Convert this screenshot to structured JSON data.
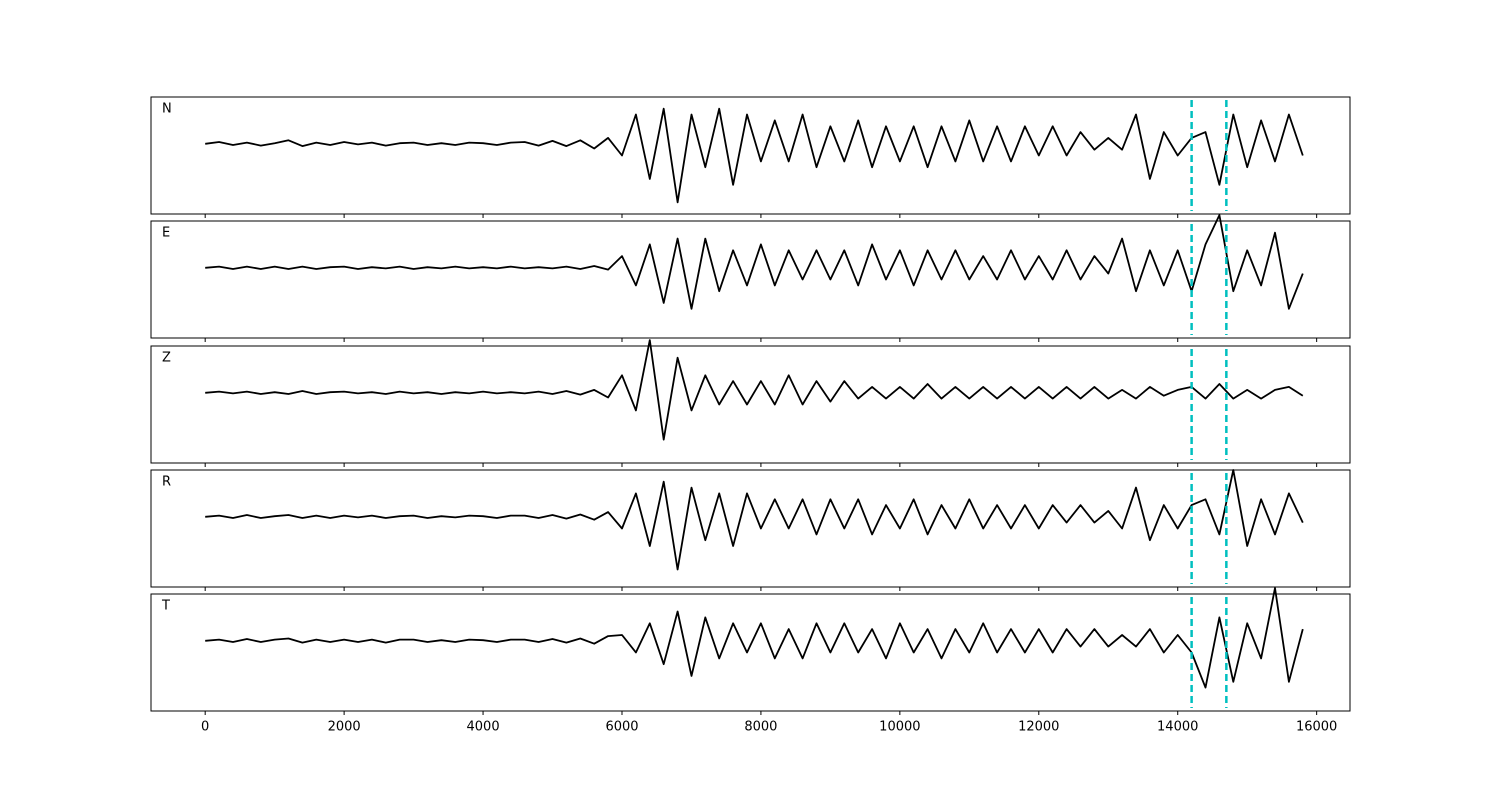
{
  "chart_data": {
    "type": "line",
    "x": [
      0,
      200,
      400,
      600,
      800,
      1000,
      1200,
      1400,
      1600,
      1800,
      2000,
      2200,
      2400,
      2600,
      2800,
      3000,
      3200,
      3400,
      3600,
      3800,
      4000,
      4200,
      4400,
      4600,
      4800,
      5000,
      5200,
      5400,
      5600,
      5800,
      6000,
      6200,
      6400,
      6600,
      6800,
      7000,
      7200,
      7400,
      7600,
      7800,
      8000,
      8200,
      8400,
      8600,
      8800,
      9000,
      9200,
      9400,
      9600,
      9800,
      10000,
      10200,
      10400,
      10600,
      10800,
      11000,
      11200,
      11400,
      11600,
      11800,
      12000,
      12200,
      12400,
      12600,
      12800,
      13000,
      13200,
      13400,
      13600,
      13800,
      14000,
      14200,
      14400,
      14600,
      14800,
      15000,
      15200,
      15400,
      15600,
      15800
    ],
    "series": [
      {
        "name": "N",
        "color": "#000000",
        "values": [
          0,
          0.03,
          -0.02,
          0.02,
          -0.03,
          0.01,
          0.06,
          -0.04,
          0.02,
          -0.02,
          0.03,
          -0.01,
          0.02,
          -0.03,
          0.01,
          0.02,
          -0.02,
          0.01,
          -0.02,
          0.02,
          0.01,
          -0.02,
          0.02,
          0.03,
          -0.03,
          0.05,
          -0.04,
          0.06,
          -0.08,
          0.1,
          -0.2,
          0.5,
          -0.6,
          0.6,
          -1.0,
          0.5,
          -0.4,
          0.6,
          -0.7,
          0.5,
          -0.3,
          0.4,
          -0.3,
          0.5,
          -0.4,
          0.3,
          -0.3,
          0.4,
          -0.4,
          0.3,
          -0.3,
          0.3,
          -0.4,
          0.3,
          -0.3,
          0.4,
          -0.3,
          0.3,
          -0.3,
          0.3,
          -0.2,
          0.3,
          -0.2,
          0.2,
          -0.1,
          0.1,
          -0.1,
          0.5,
          -0.6,
          0.2,
          -0.2,
          0.1,
          0.2,
          -0.7,
          0.5,
          -0.4,
          0.4,
          -0.3,
          0.5,
          -0.2
        ]
      },
      {
        "name": "E",
        "color": "#000000",
        "values": [
          0,
          0.02,
          -0.02,
          0.02,
          -0.02,
          0.02,
          -0.02,
          0.02,
          -0.02,
          0.01,
          0.02,
          -0.02,
          0.01,
          -0.01,
          0.02,
          -0.02,
          0.01,
          -0.01,
          0.02,
          -0.01,
          0.01,
          -0.01,
          0.02,
          -0.01,
          0.01,
          -0.01,
          0.02,
          -0.02,
          0.03,
          -0.03,
          0.2,
          -0.3,
          0.4,
          -0.6,
          0.5,
          -0.7,
          0.5,
          -0.4,
          0.3,
          -0.3,
          0.4,
          -0.3,
          0.3,
          -0.2,
          0.3,
          -0.2,
          0.3,
          -0.3,
          0.4,
          -0.2,
          0.3,
          -0.3,
          0.3,
          -0.2,
          0.3,
          -0.2,
          0.2,
          -0.2,
          0.3,
          -0.2,
          0.2,
          -0.2,
          0.3,
          -0.2,
          0.2,
          -0.1,
          0.5,
          -0.4,
          0.3,
          -0.3,
          0.3,
          -0.4,
          0.4,
          0.9,
          -0.4,
          0.3,
          -0.3,
          0.6,
          -0.7,
          -0.1
        ]
      },
      {
        "name": "Z",
        "color": "#000000",
        "values": [
          0,
          0.02,
          -0.01,
          0.02,
          -0.02,
          0.01,
          -0.02,
          0.03,
          -0.02,
          0.01,
          0.02,
          -0.01,
          0.01,
          -0.02,
          0.02,
          -0.01,
          0.01,
          -0.02,
          0.01,
          -0.01,
          0.02,
          -0.01,
          0.01,
          -0.01,
          0.02,
          -0.02,
          0.03,
          -0.03,
          0.05,
          -0.08,
          0.3,
          -0.3,
          0.9,
          -0.8,
          0.6,
          -0.3,
          0.3,
          -0.2,
          0.2,
          -0.2,
          0.2,
          -0.2,
          0.3,
          -0.2,
          0.2,
          -0.15,
          0.2,
          -0.1,
          0.1,
          -0.1,
          0.1,
          -0.1,
          0.15,
          -0.1,
          0.1,
          -0.1,
          0.1,
          -0.1,
          0.1,
          -0.1,
          0.1,
          -0.1,
          0.1,
          -0.1,
          0.1,
          -0.1,
          0.05,
          -0.1,
          0.1,
          -0.05,
          0.05,
          0.1,
          -0.1,
          0.15,
          -0.1,
          0.05,
          -0.1,
          0.05,
          0.1,
          -0.05
        ]
      },
      {
        "name": "R",
        "color": "#000000",
        "values": [
          0,
          0.02,
          -0.02,
          0.03,
          -0.02,
          0.01,
          0.03,
          -0.02,
          0.02,
          -0.02,
          0.02,
          -0.01,
          0.02,
          -0.02,
          0.01,
          0.02,
          -0.02,
          0.01,
          -0.01,
          0.02,
          0.01,
          -0.02,
          0.02,
          0.02,
          -0.02,
          0.03,
          -0.03,
          0.04,
          -0.05,
          0.08,
          -0.2,
          0.4,
          -0.5,
          0.6,
          -0.9,
          0.5,
          -0.4,
          0.4,
          -0.5,
          0.4,
          -0.2,
          0.3,
          -0.2,
          0.3,
          -0.3,
          0.3,
          -0.2,
          0.3,
          -0.3,
          0.2,
          -0.2,
          0.3,
          -0.3,
          0.2,
          -0.2,
          0.3,
          -0.2,
          0.2,
          -0.2,
          0.2,
          -0.2,
          0.2,
          -0.1,
          0.2,
          -0.1,
          0.1,
          -0.2,
          0.5,
          -0.4,
          0.2,
          -0.2,
          0.2,
          0.3,
          -0.3,
          0.8,
          -0.5,
          0.3,
          -0.3,
          0.4,
          -0.1
        ]
      },
      {
        "name": "T",
        "color": "#000000",
        "values": [
          0,
          0.02,
          -0.02,
          0.03,
          -0.02,
          0.02,
          0.04,
          -0.03,
          0.02,
          -0.02,
          0.02,
          -0.02,
          0.02,
          -0.03,
          0.02,
          0.02,
          -0.02,
          0.01,
          -0.02,
          0.02,
          0.01,
          -0.02,
          0.02,
          0.02,
          -0.02,
          0.03,
          -0.03,
          0.04,
          -0.05,
          0.08,
          0.1,
          -0.2,
          0.3,
          -0.4,
          0.5,
          -0.6,
          0.4,
          -0.3,
          0.3,
          -0.2,
          0.3,
          -0.3,
          0.2,
          -0.3,
          0.3,
          -0.2,
          0.3,
          -0.2,
          0.2,
          -0.3,
          0.3,
          -0.2,
          0.2,
          -0.3,
          0.2,
          -0.2,
          0.3,
          -0.2,
          0.2,
          -0.2,
          0.2,
          -0.2,
          0.2,
          -0.1,
          0.2,
          -0.1,
          0.1,
          -0.1,
          0.2,
          -0.2,
          0.1,
          -0.2,
          -0.8,
          0.4,
          -0.7,
          0.3,
          -0.3,
          0.9,
          -0.7,
          0.2
        ]
      }
    ],
    "xlim": [
      -780,
      16480
    ],
    "xticks": [
      0,
      2000,
      4000,
      6000,
      8000,
      10000,
      12000,
      14000,
      16000
    ],
    "ylim": [
      -1.2,
      0.8
    ],
    "vlines": [
      14200,
      14700
    ],
    "vline_color": "#00bfbf",
    "vline_style": "dashed"
  }
}
